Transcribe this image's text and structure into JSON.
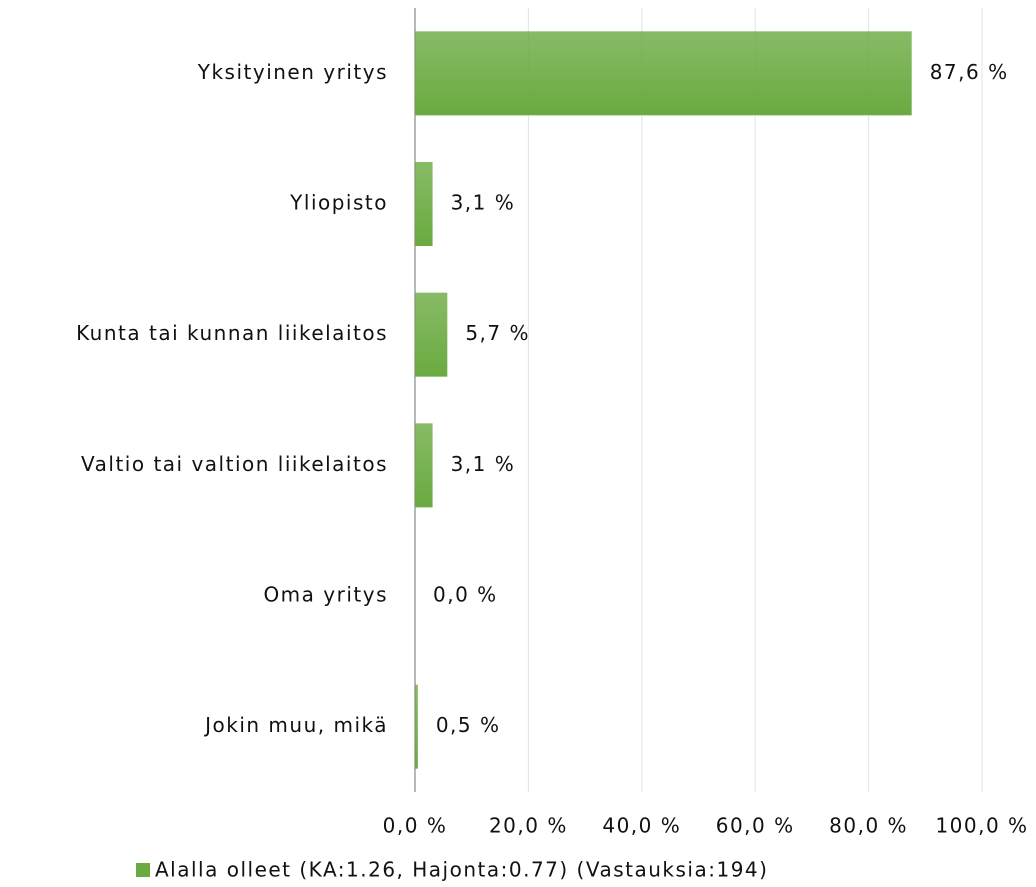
{
  "chart_data": {
    "type": "hbar",
    "categories": [
      "Yksityinen yritys",
      "Yliopisto",
      "Kunta tai kunnan liikelaitos",
      "Valtio tai valtion liikelaitos",
      "Oma yritys",
      "Jokin muu, mikä"
    ],
    "series": [
      {
        "name": "Alalla olleet (KA:1.26, Hajonta:0.77) (Vastauksia:194)",
        "color": "#6aaa40",
        "values": [
          87.6,
          3.1,
          5.7,
          3.1,
          0.0,
          0.5
        ],
        "value_labels": [
          "87,6 %",
          "3,1 %",
          "5,7 %",
          "3,1 %",
          "0,0 %",
          "0,5 %"
        ]
      }
    ],
    "xlim": [
      0,
      100
    ],
    "xticks": [
      {
        "value": 0,
        "label": "0,0 %"
      },
      {
        "value": 20,
        "label": "20,0 %"
      },
      {
        "value": 40,
        "label": "40,0 %"
      },
      {
        "value": 60,
        "label": "60,0 %"
      },
      {
        "value": 80,
        "label": "80,0 %"
      },
      {
        "value": 100,
        "label": "100,0 %"
      }
    ],
    "grid": true,
    "legend": "bottom"
  }
}
